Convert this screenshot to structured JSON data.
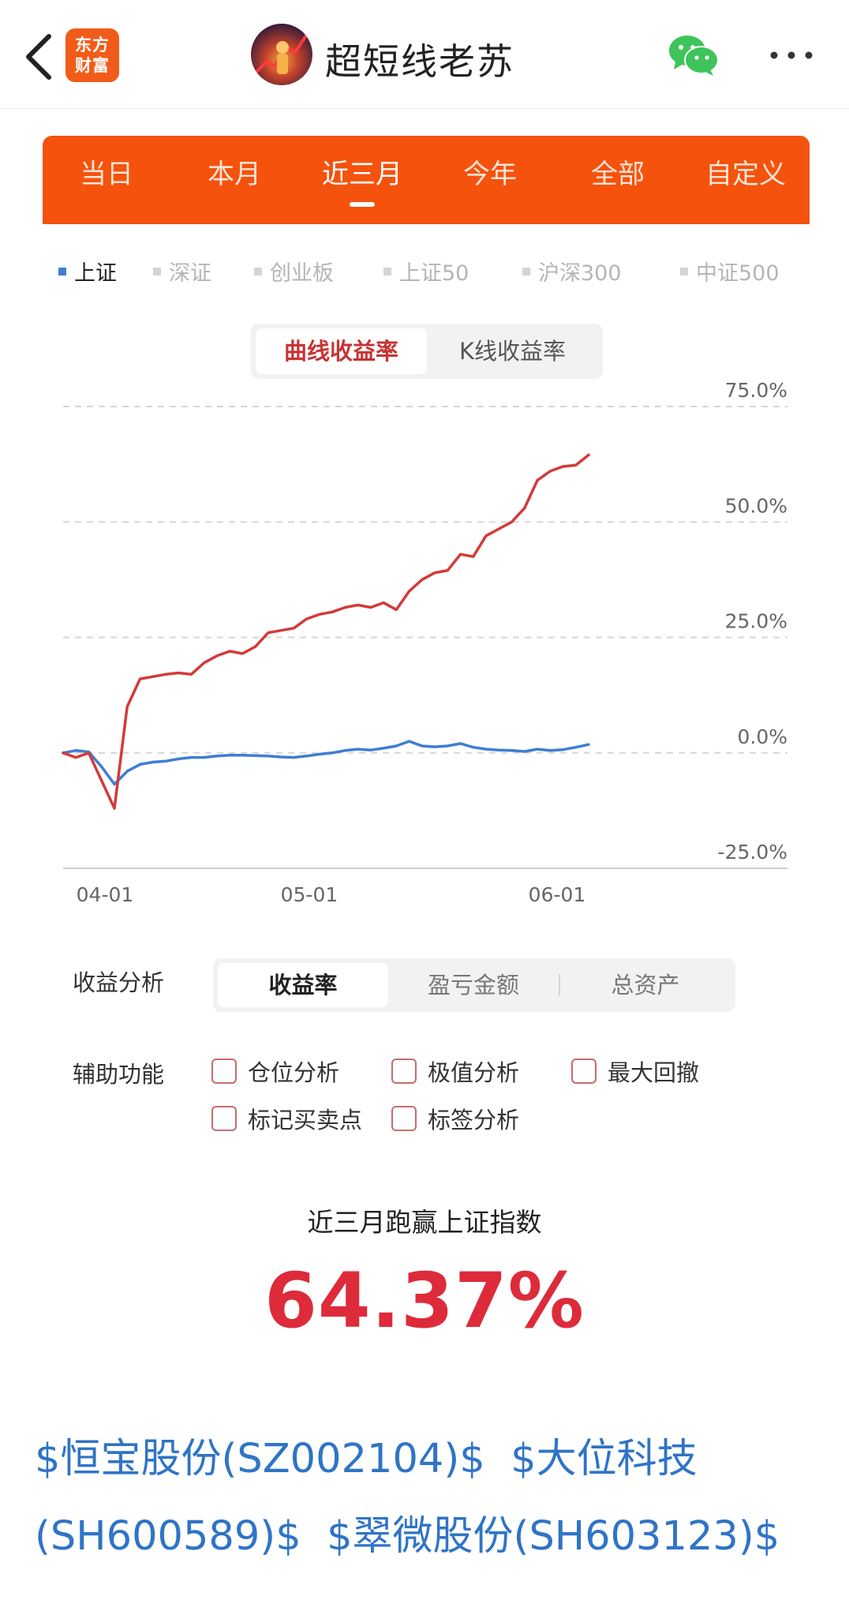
{
  "header": {
    "logo_line1": "东方",
    "logo_line2": "财富",
    "title": "超短线老苏"
  },
  "period_tabs": [
    {
      "label": "当日",
      "active": false
    },
    {
      "label": "本月",
      "active": false
    },
    {
      "label": "近三月",
      "active": true
    },
    {
      "label": "今年",
      "active": false
    },
    {
      "label": "全部",
      "active": false
    },
    {
      "label": "自定义",
      "active": false
    }
  ],
  "indices": [
    {
      "label": "上证",
      "active": true
    },
    {
      "label": "深证",
      "active": false
    },
    {
      "label": "创业板",
      "active": false
    },
    {
      "label": "上证50",
      "active": false
    },
    {
      "label": "沪深300",
      "active": false
    },
    {
      "label": "中证500",
      "active": false
    }
  ],
  "chart_toggle": {
    "curve": "曲线收益率",
    "kline": "K线收益率",
    "active": "curve"
  },
  "chart_data": {
    "type": "line",
    "y_tick_labels": [
      "75.0%",
      "50.0%",
      "25.0%",
      "0.0%",
      "-25.0%"
    ],
    "y_ticks": [
      75,
      50,
      25,
      0,
      -25
    ],
    "ylim": [
      -25,
      75
    ],
    "x_tick_labels": [
      "04-01",
      "05-01",
      "06-01"
    ],
    "grid": true,
    "colors": {
      "account": "#d43a3a",
      "index": "#3f7dd4"
    },
    "series": [
      {
        "key": "account",
        "values": [
          0.0,
          -1.0,
          0.0,
          -6.0,
          -12.0,
          10.0,
          16.0,
          16.5,
          17.0,
          17.3,
          17.0,
          19.5,
          21.0,
          22.0,
          21.5,
          23.0,
          26.0,
          26.5,
          27.0,
          29.0,
          30.0,
          30.5,
          31.5,
          32.0,
          31.5,
          32.5,
          31.0,
          35.0,
          37.5,
          39.0,
          39.5,
          43.0,
          42.5,
          47.0,
          48.5,
          50.0,
          53.0,
          59.0,
          61.0,
          62.0,
          62.3,
          64.5
        ]
      },
      {
        "key": "index",
        "values": [
          0.0,
          0.5,
          0.2,
          -3.0,
          -6.8,
          -4.0,
          -2.5,
          -2.0,
          -1.8,
          -1.3,
          -1.0,
          -1.0,
          -0.7,
          -0.5,
          -0.5,
          -0.6,
          -0.7,
          -0.9,
          -1.0,
          -0.7,
          -0.3,
          0.0,
          0.5,
          0.8,
          0.6,
          1.0,
          1.5,
          2.5,
          1.5,
          1.3,
          1.5,
          2.0,
          1.2,
          0.8,
          0.6,
          0.5,
          0.3,
          0.8,
          0.5,
          0.7,
          1.2,
          1.8
        ]
      }
    ]
  },
  "analysis": {
    "label": "收益分析",
    "options": [
      "收益率",
      "盈亏金额",
      "总资产"
    ],
    "active": 0
  },
  "aux": {
    "label": "辅助功能",
    "items": [
      "仓位分析",
      "极值分析",
      "最大回撤",
      "标记买卖点",
      "标签分析"
    ]
  },
  "result": {
    "label": "近三月跑赢上证指数",
    "value": "64.37%"
  },
  "stocks": [
    "$恒宝股份(SZ002104)$",
    "$大位科技(SH600589)$",
    "$翠微股份(SH603123)$"
  ]
}
